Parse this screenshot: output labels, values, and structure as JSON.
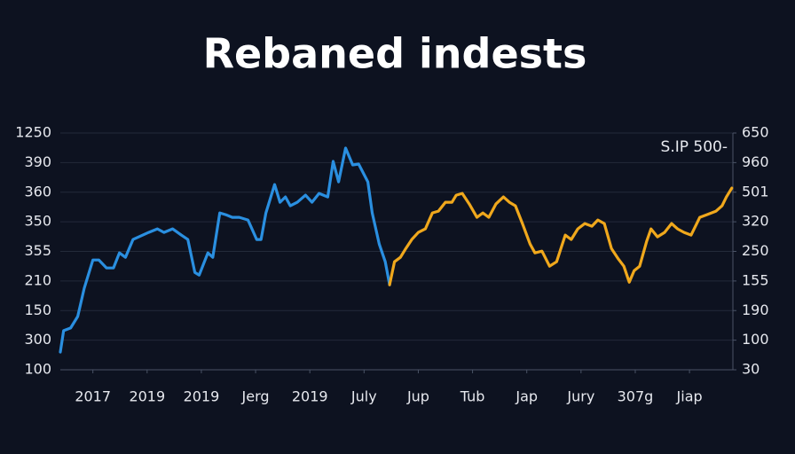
{
  "chart_data": {
    "type": "line",
    "title": "Rebaned indests",
    "annotation": "S.IP 500-",
    "grid": true,
    "xlim": [
      -0.6,
      11.8
    ],
    "xticks": [
      {
        "value": 0,
        "label": "2017"
      },
      {
        "value": 1,
        "label": "2019"
      },
      {
        "value": 2,
        "label": "2019"
      },
      {
        "value": 3,
        "label": "Jerg"
      },
      {
        "value": 4,
        "label": "2019"
      },
      {
        "value": 5,
        "label": "July"
      },
      {
        "value": 6,
        "label": "Jup"
      },
      {
        "value": 7,
        "label": "Tub"
      },
      {
        "value": 8,
        "label": "Jap"
      },
      {
        "value": 9,
        "label": "Jury"
      },
      {
        "value": 10,
        "label": "307g"
      },
      {
        "value": 11,
        "label": "Jiap"
      }
    ],
    "ylim": [
      0,
      8
    ],
    "yticks": [
      {
        "value": 0,
        "label": "100"
      },
      {
        "value": 1,
        "label": "300"
      },
      {
        "value": 2,
        "label": "150"
      },
      {
        "value": 3,
        "label": "210"
      },
      {
        "value": 4,
        "label": "355"
      },
      {
        "value": 5,
        "label": "350"
      },
      {
        "value": 6,
        "label": "360"
      },
      {
        "value": 7,
        "label": "390"
      },
      {
        "value": 8,
        "label": "1250"
      }
    ],
    "y2lim": [
      0,
      8
    ],
    "y2ticks": [
      {
        "value": 0,
        "label": "30"
      },
      {
        "value": 1,
        "label": "100"
      },
      {
        "value": 2,
        "label": "190"
      },
      {
        "value": 3,
        "label": "155"
      },
      {
        "value": 4,
        "label": "250"
      },
      {
        "value": 5,
        "label": "320"
      },
      {
        "value": 6,
        "label": "501"
      },
      {
        "value": 7,
        "label": "960"
      },
      {
        "value": 8,
        "label": "650"
      }
    ],
    "series": [
      {
        "color": "#2a8fe0",
        "x": [
          -0.6,
          -0.54,
          -0.41,
          -0.28,
          -0.16,
          0,
          0.11,
          0.25,
          0.38,
          0.49,
          0.6,
          0.74,
          1.03,
          1.19,
          1.31,
          1.47,
          1.63,
          1.75,
          1.88,
          1.96,
          2.12,
          2.21,
          2.34,
          2.45,
          2.57,
          2.7,
          2.86,
          3.02,
          3.1,
          3.19,
          3.35,
          3.45,
          3.55,
          3.64,
          3.77,
          3.92,
          4.04,
          4.17,
          4.33,
          4.43,
          4.53,
          4.66,
          4.79,
          4.9,
          5.07,
          5.15,
          5.28,
          5.39,
          5.47
        ],
        "values": [
          0.6,
          1.32,
          1.41,
          1.8,
          2.75,
          3.71,
          3.71,
          3.44,
          3.44,
          3.95,
          3.8,
          4.4,
          4.64,
          4.76,
          4.64,
          4.76,
          4.55,
          4.4,
          3.29,
          3.2,
          3.95,
          3.8,
          5.3,
          5.24,
          5.15,
          5.15,
          5.06,
          4.4,
          4.4,
          5.3,
          6.26,
          5.66,
          5.84,
          5.54,
          5.66,
          5.9,
          5.66,
          5.96,
          5.84,
          7.04,
          6.35,
          7.49,
          6.92,
          6.95,
          6.35,
          5.3,
          4.25,
          3.65,
          2.87
        ]
      },
      {
        "color": "#f0a81c",
        "axis": "y2",
        "x": [
          5.47,
          5.56,
          5.67,
          5.77,
          5.88,
          6.0,
          6.13,
          6.26,
          6.37,
          6.5,
          6.62,
          6.7,
          6.81,
          6.94,
          7.08,
          7.19,
          7.3,
          7.43,
          7.57,
          7.68,
          7.79,
          7.92,
          8.06,
          8.15,
          8.28,
          8.42,
          8.55,
          8.71,
          8.82,
          8.94,
          9.07,
          9.2,
          9.31,
          9.43,
          9.56,
          9.69,
          9.79,
          9.89,
          9.98,
          10.08,
          10.21,
          10.29,
          10.41,
          10.54,
          10.67,
          10.78,
          10.9,
          11.03,
          11.19,
          11.32,
          11.49,
          11.6,
          11.68,
          11.78
        ],
        "values": [
          2.87,
          3.65,
          3.8,
          4.1,
          4.4,
          4.64,
          4.76,
          5.3,
          5.36,
          5.66,
          5.66,
          5.9,
          5.96,
          5.6,
          5.15,
          5.3,
          5.15,
          5.6,
          5.84,
          5.66,
          5.54,
          4.94,
          4.25,
          3.95,
          4.01,
          3.5,
          3.65,
          4.55,
          4.4,
          4.76,
          4.94,
          4.85,
          5.06,
          4.94,
          4.1,
          3.74,
          3.5,
          2.96,
          3.35,
          3.5,
          4.34,
          4.76,
          4.49,
          4.64,
          4.94,
          4.76,
          4.64,
          4.55,
          5.15,
          5.24,
          5.36,
          5.54,
          5.84,
          6.14
        ]
      }
    ]
  }
}
